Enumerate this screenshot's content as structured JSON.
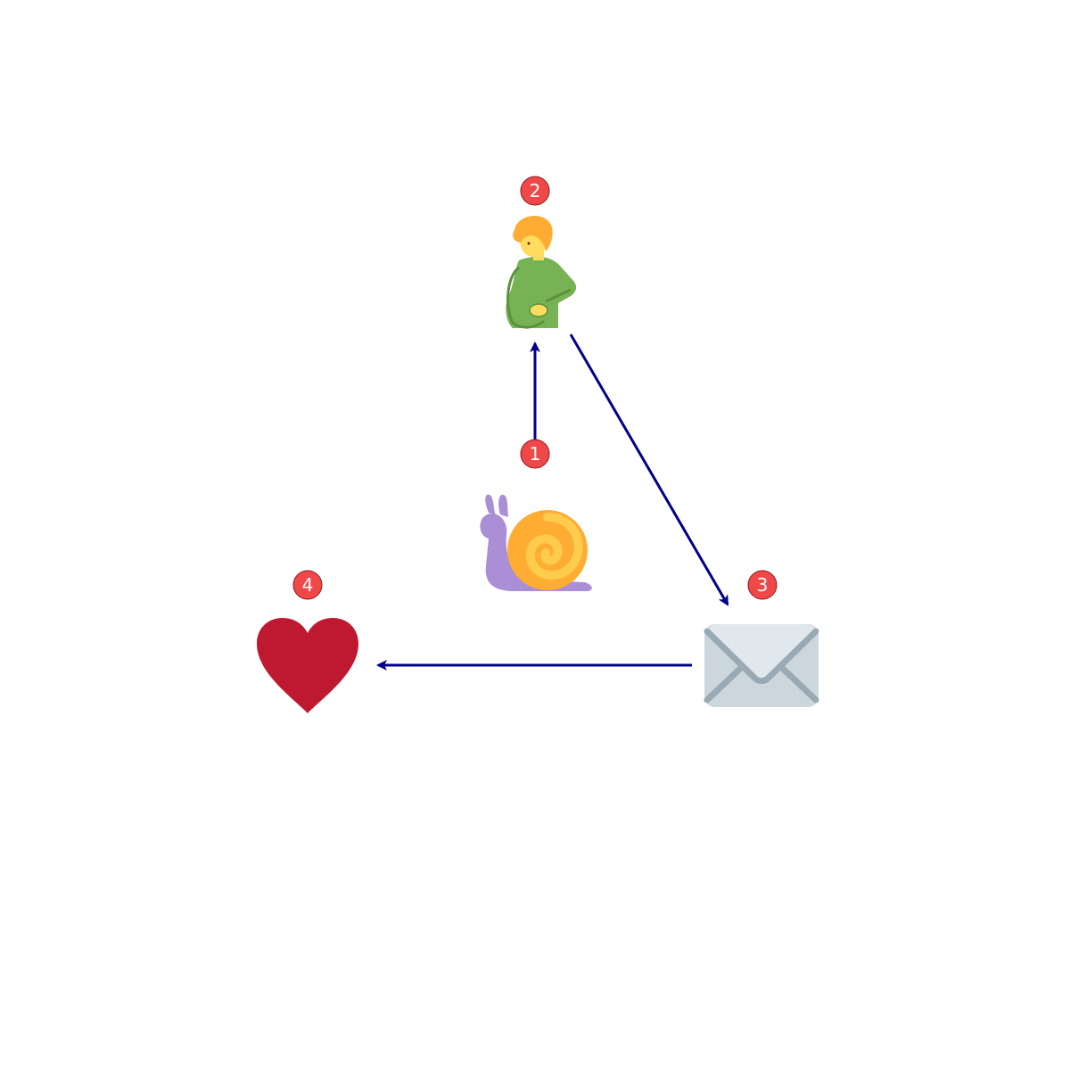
{
  "diagram": {
    "nodes": [
      {
        "id": "snail",
        "badge": "1",
        "icon": "snail-icon"
      },
      {
        "id": "pregnant-man",
        "badge": "2",
        "icon": "pregnant-man-icon"
      },
      {
        "id": "envelope",
        "badge": "3",
        "icon": "envelope-icon"
      },
      {
        "id": "heart",
        "badge": "4",
        "icon": "heart-icon"
      }
    ],
    "edges": [
      {
        "from": "snail",
        "to": "pregnant-man"
      },
      {
        "from": "pregnant-man",
        "to": "envelope"
      },
      {
        "from": "envelope",
        "to": "heart"
      }
    ]
  },
  "colors": {
    "arrow": "#00008b",
    "badge_fill": "#f04848",
    "badge_text": "#ffffff",
    "snail_body": "#aa8ed6",
    "snail_shell": "#ffac33",
    "snail_shell_inner": "#ffcc4d",
    "person_hair": "#ffac33",
    "person_skin": "#ffdc5d",
    "person_shirt": "#77b255",
    "person_shirt_dark": "#5c913b",
    "envelope_body": "#ccd6dd",
    "envelope_flap": "#e1e8ed",
    "envelope_line": "#99aab5",
    "heart": "#be1931"
  }
}
